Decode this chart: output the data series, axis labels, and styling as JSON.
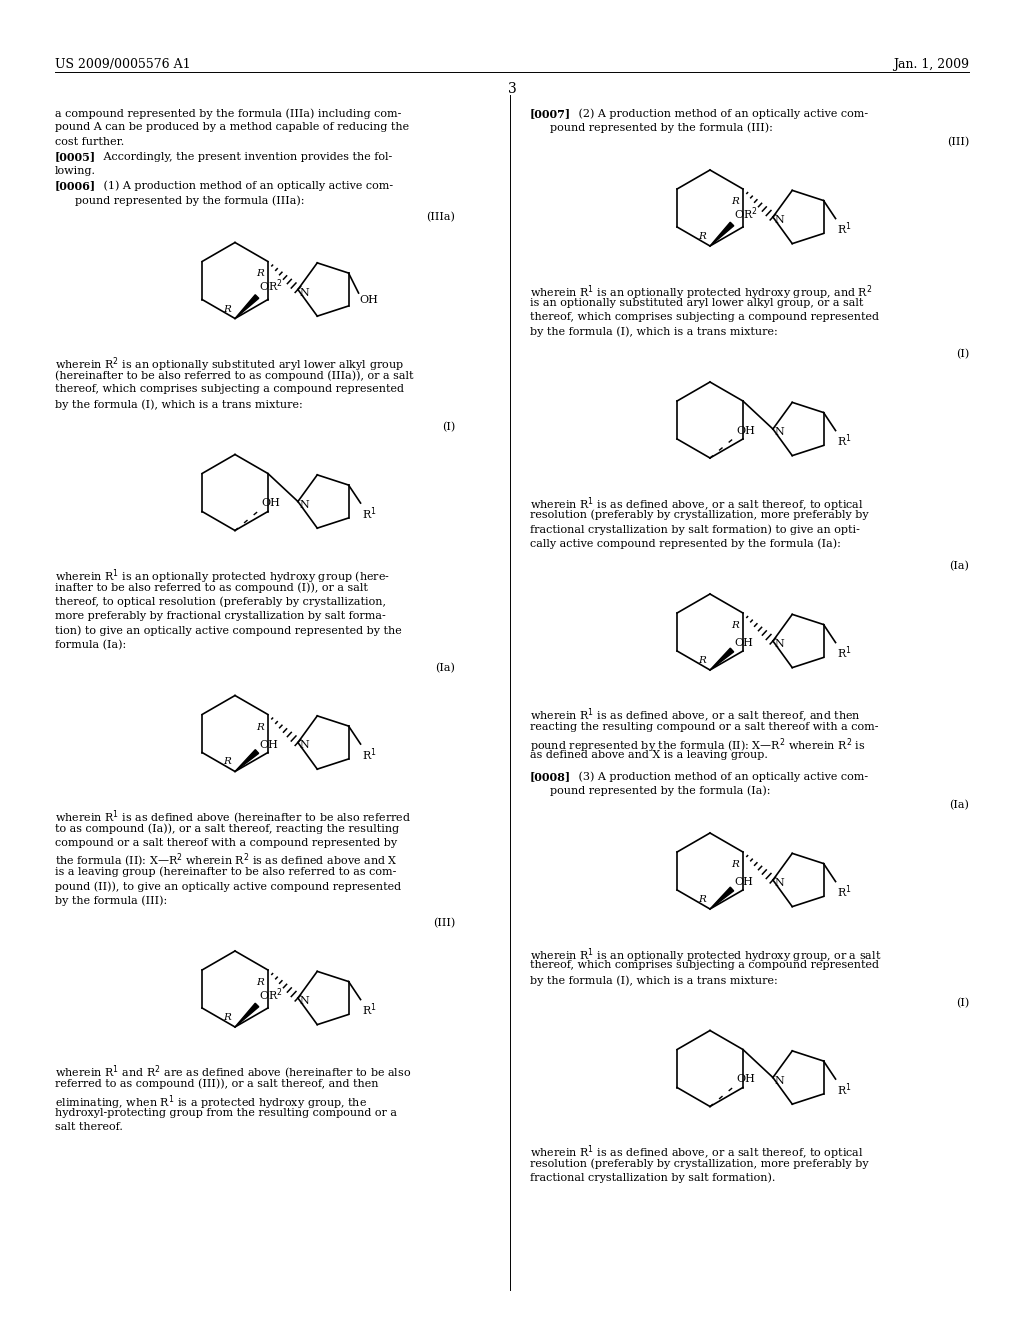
{
  "bg": "#ffffff",
  "header_left": "US 2009/0005576 A1",
  "header_right": "Jan. 1, 2009",
  "page_num": "3"
}
